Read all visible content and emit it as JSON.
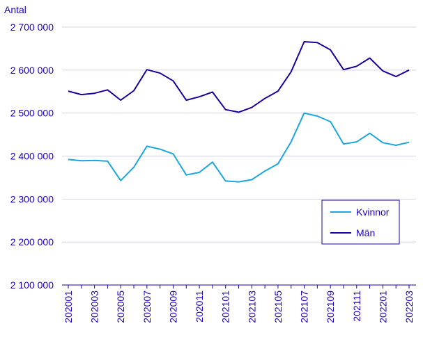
{
  "chart_data": {
    "type": "line",
    "ylabel": "Antal",
    "ylim": [
      2100000,
      2700000
    ],
    "yticks": [
      {
        "value": 2700000,
        "label": "2 700 000"
      },
      {
        "value": 2600000,
        "label": "2 600 000"
      },
      {
        "value": 2500000,
        "label": "2 500 000"
      },
      {
        "value": 2400000,
        "label": "2 400 000"
      },
      {
        "value": 2300000,
        "label": "2 300 000"
      },
      {
        "value": 2200000,
        "label": "2 200 000"
      },
      {
        "value": 2100000,
        "label": "2 100 000"
      }
    ],
    "x": [
      "202001",
      "202002",
      "202003",
      "202004",
      "202005",
      "202006",
      "202007",
      "202008",
      "202009",
      "202010",
      "202011",
      "202012",
      "202101",
      "202102",
      "202103",
      "202104",
      "202105",
      "202106",
      "202107",
      "202108",
      "202109",
      "202110",
      "202111",
      "202112",
      "202201",
      "202202",
      "202203"
    ],
    "xtick_labels": [
      "202001",
      "202003",
      "202005",
      "202007",
      "202009",
      "202011",
      "202101",
      "202103",
      "202105",
      "202107",
      "202109",
      "202111",
      "202201",
      "202203"
    ],
    "grid": "horizontal",
    "legend_placement": "bottom-right",
    "series": [
      {
        "name": "Kvinnor",
        "color": "#1aa6e0",
        "values": [
          2392000,
          2389000,
          2390000,
          2388000,
          2343000,
          2374000,
          2423000,
          2416000,
          2405000,
          2356000,
          2362000,
          2386000,
          2342000,
          2340000,
          2345000,
          2365000,
          2382000,
          2433000,
          2500000,
          2493000,
          2480000,
          2428000,
          2433000,
          2453000,
          2431000,
          2425000,
          2432000
        ]
      },
      {
        "name": "Män",
        "color": "#1e00a0",
        "values": [
          2551000,
          2543000,
          2546000,
          2554000,
          2530000,
          2552000,
          2601000,
          2593000,
          2575000,
          2530000,
          2538000,
          2549000,
          2508000,
          2502000,
          2513000,
          2534000,
          2551000,
          2596000,
          2666000,
          2664000,
          2647000,
          2601000,
          2609000,
          2628000,
          2598000,
          2585000,
          2600000
        ]
      }
    ]
  }
}
